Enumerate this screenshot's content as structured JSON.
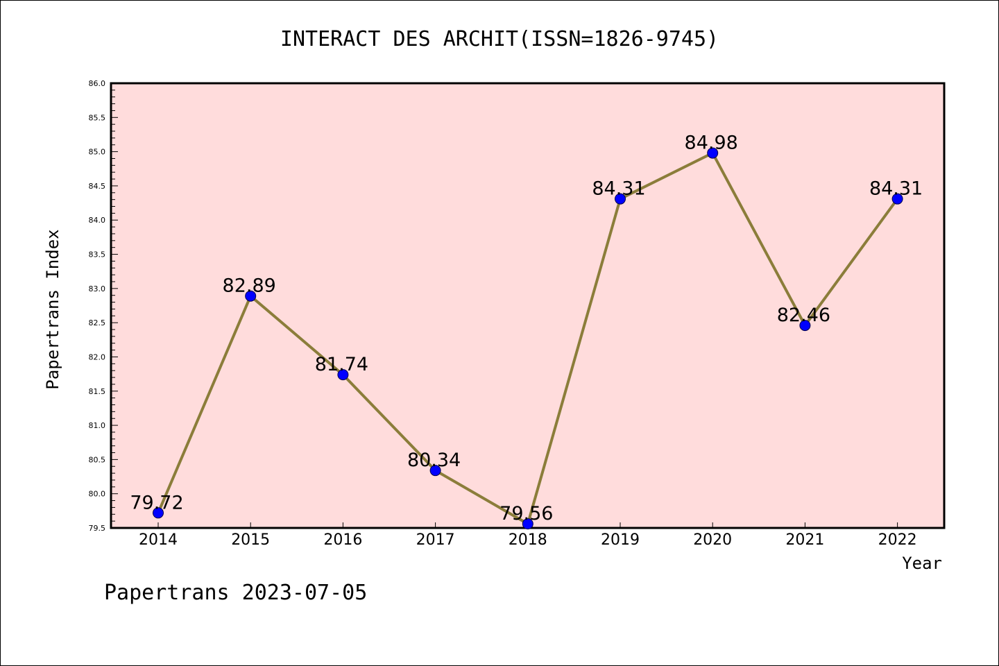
{
  "chart_data": {
    "type": "line",
    "title": "INTERACT DES ARCHIT(ISSN=1826-9745)",
    "xlabel": "Year",
    "ylabel": "Papertrans Index",
    "footer": "Papertrans 2023-07-05",
    "categories": [
      "2014",
      "2015",
      "2016",
      "2017",
      "2018",
      "2019",
      "2020",
      "2021",
      "2022"
    ],
    "values": [
      79.72,
      82.89,
      81.74,
      80.34,
      79.56,
      84.31,
      84.98,
      82.46,
      84.31
    ],
    "data_labels": [
      "79.72",
      "82.89",
      "81.74",
      "80.34",
      "79.56",
      "84.31",
      "84.98",
      "82.46",
      "84.31"
    ],
    "ylim": [
      79.5,
      86.0
    ],
    "y_ticks": [
      "79.5",
      "80.0",
      "80.5",
      "81.0",
      "81.5",
      "82.0",
      "82.5",
      "83.0",
      "83.5",
      "84.0",
      "84.5",
      "85.0",
      "85.5",
      "86.0"
    ],
    "grid": false,
    "colors": {
      "plot_background": "#ffdcdc",
      "line": "#8b7d3a",
      "marker": "#0000ff",
      "axis": "#000000"
    }
  }
}
